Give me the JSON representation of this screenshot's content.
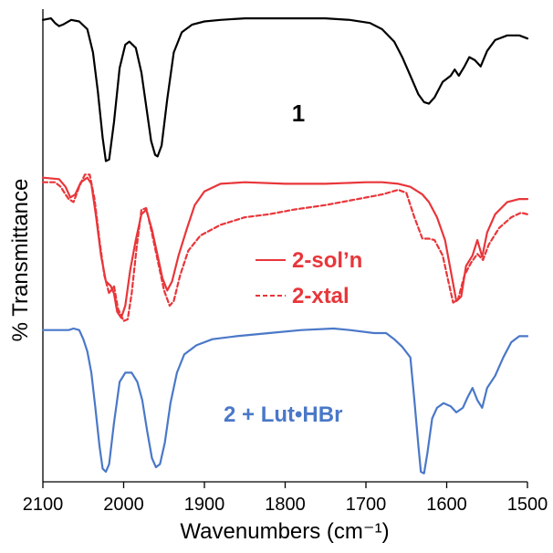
{
  "colors": {
    "black": "#000000",
    "red": "#e8363a",
    "blue": "#4a78c8"
  },
  "chart_data": {
    "type": "line",
    "xlabel": "Wavenumbers (cm⁻¹)",
    "ylabel": "% Transmittance",
    "xlim": [
      2100,
      1500
    ],
    "x_reversed": true,
    "xticks": [
      2100,
      2000,
      1900,
      1800,
      1700,
      1600,
      1500
    ],
    "xtick_labels": [
      "2100",
      "2000",
      "1900",
      "1800",
      "1700",
      "1600",
      "1500"
    ],
    "y_units": "arbitrary (stacked spectra, no y tick labels)",
    "grid": false,
    "series": [
      {
        "name": "1",
        "style": "solid",
        "color": "#000000",
        "points": [
          [
            2100,
            0.96
          ],
          [
            2090,
            0.97
          ],
          [
            2085,
            0.94
          ],
          [
            2080,
            0.92
          ],
          [
            2075,
            0.93
          ],
          [
            2065,
            0.96
          ],
          [
            2055,
            0.95
          ],
          [
            2045,
            0.9
          ],
          [
            2038,
            0.75
          ],
          [
            2032,
            0.5
          ],
          [
            2026,
            0.2
          ],
          [
            2022,
            0.05
          ],
          [
            2018,
            0.06
          ],
          [
            2012,
            0.3
          ],
          [
            2005,
            0.65
          ],
          [
            1998,
            0.8
          ],
          [
            1993,
            0.82
          ],
          [
            1985,
            0.78
          ],
          [
            1978,
            0.62
          ],
          [
            1972,
            0.4
          ],
          [
            1966,
            0.18
          ],
          [
            1961,
            0.09
          ],
          [
            1958,
            0.08
          ],
          [
            1953,
            0.15
          ],
          [
            1946,
            0.45
          ],
          [
            1938,
            0.75
          ],
          [
            1928,
            0.88
          ],
          [
            1915,
            0.93
          ],
          [
            1900,
            0.95
          ],
          [
            1880,
            0.96
          ],
          [
            1850,
            0.97
          ],
          [
            1800,
            0.97
          ],
          [
            1750,
            0.97
          ],
          [
            1720,
            0.96
          ],
          [
            1695,
            0.94
          ],
          [
            1680,
            0.9
          ],
          [
            1665,
            0.82
          ],
          [
            1655,
            0.72
          ],
          [
            1645,
            0.6
          ],
          [
            1635,
            0.48
          ],
          [
            1628,
            0.43
          ],
          [
            1622,
            0.42
          ],
          [
            1615,
            0.46
          ],
          [
            1605,
            0.56
          ],
          [
            1595,
            0.6
          ],
          [
            1590,
            0.64
          ],
          [
            1585,
            0.6
          ],
          [
            1578,
            0.66
          ],
          [
            1572,
            0.72
          ],
          [
            1565,
            0.7
          ],
          [
            1558,
            0.66
          ],
          [
            1550,
            0.76
          ],
          [
            1540,
            0.83
          ],
          [
            1525,
            0.86
          ],
          [
            1510,
            0.86
          ],
          [
            1500,
            0.84
          ]
        ]
      },
      {
        "name": "2-sol’n",
        "style": "solid",
        "color": "#e8363a",
        "points": [
          [
            2100,
            0.96
          ],
          [
            2080,
            0.95
          ],
          [
            2072,
            0.9
          ],
          [
            2066,
            0.83
          ],
          [
            2060,
            0.85
          ],
          [
            2053,
            0.93
          ],
          [
            2045,
            0.96
          ],
          [
            2040,
            0.92
          ],
          [
            2034,
            0.7
          ],
          [
            2028,
            0.45
          ],
          [
            2022,
            0.28
          ],
          [
            2016,
            0.25
          ],
          [
            2012,
            0.2
          ],
          [
            2008,
            0.08
          ],
          [
            2003,
            0.04
          ],
          [
            1998,
            0.12
          ],
          [
            1992,
            0.35
          ],
          [
            1985,
            0.55
          ],
          [
            1978,
            0.72
          ],
          [
            1972,
            0.75
          ],
          [
            1965,
            0.62
          ],
          [
            1958,
            0.45
          ],
          [
            1952,
            0.3
          ],
          [
            1946,
            0.22
          ],
          [
            1940,
            0.28
          ],
          [
            1932,
            0.45
          ],
          [
            1922,
            0.62
          ],
          [
            1912,
            0.78
          ],
          [
            1900,
            0.87
          ],
          [
            1880,
            0.92
          ],
          [
            1850,
            0.93
          ],
          [
            1800,
            0.92
          ],
          [
            1750,
            0.92
          ],
          [
            1700,
            0.93
          ],
          [
            1680,
            0.93
          ],
          [
            1660,
            0.92
          ],
          [
            1645,
            0.9
          ],
          [
            1630,
            0.85
          ],
          [
            1622,
            0.8
          ],
          [
            1612,
            0.7
          ],
          [
            1602,
            0.55
          ],
          [
            1595,
            0.35
          ],
          [
            1588,
            0.15
          ],
          [
            1582,
            0.18
          ],
          [
            1576,
            0.38
          ],
          [
            1568,
            0.45
          ],
          [
            1562,
            0.55
          ],
          [
            1556,
            0.44
          ],
          [
            1550,
            0.6
          ],
          [
            1540,
            0.72
          ],
          [
            1525,
            0.8
          ],
          [
            1510,
            0.82
          ],
          [
            1500,
            0.82
          ]
        ]
      },
      {
        "name": "2-xtal",
        "style": "dashed",
        "color": "#e8363a",
        "points": [
          [
            2100,
            0.93
          ],
          [
            2085,
            0.93
          ],
          [
            2078,
            0.9
          ],
          [
            2072,
            0.85
          ],
          [
            2068,
            0.82
          ],
          [
            2062,
            0.8
          ],
          [
            2055,
            0.9
          ],
          [
            2048,
            0.98
          ],
          [
            2042,
            0.98
          ],
          [
            2036,
            0.82
          ],
          [
            2030,
            0.55
          ],
          [
            2024,
            0.32
          ],
          [
            2018,
            0.2
          ],
          [
            2012,
            0.25
          ],
          [
            2007,
            0.1
          ],
          [
            2000,
            0.02
          ],
          [
            1995,
            0.03
          ],
          [
            1990,
            0.2
          ],
          [
            1984,
            0.5
          ],
          [
            1978,
            0.75
          ],
          [
            1972,
            0.76
          ],
          [
            1966,
            0.62
          ],
          [
            1958,
            0.42
          ],
          [
            1950,
            0.22
          ],
          [
            1943,
            0.12
          ],
          [
            1938,
            0.15
          ],
          [
            1930,
            0.32
          ],
          [
            1920,
            0.48
          ],
          [
            1905,
            0.58
          ],
          [
            1880,
            0.65
          ],
          [
            1850,
            0.7
          ],
          [
            1820,
            0.72
          ],
          [
            1790,
            0.75
          ],
          [
            1750,
            0.78
          ],
          [
            1710,
            0.82
          ],
          [
            1680,
            0.85
          ],
          [
            1660,
            0.88
          ],
          [
            1650,
            0.86
          ],
          [
            1640,
            0.7
          ],
          [
            1630,
            0.56
          ],
          [
            1622,
            0.56
          ],
          [
            1615,
            0.55
          ],
          [
            1605,
            0.45
          ],
          [
            1598,
            0.28
          ],
          [
            1592,
            0.14
          ],
          [
            1586,
            0.16
          ],
          [
            1578,
            0.32
          ],
          [
            1570,
            0.4
          ],
          [
            1562,
            0.46
          ],
          [
            1555,
            0.42
          ],
          [
            1548,
            0.52
          ],
          [
            1535,
            0.63
          ],
          [
            1520,
            0.7
          ],
          [
            1508,
            0.73
          ],
          [
            1500,
            0.72
          ]
        ]
      },
      {
        "name": "2 + Lut•HBr",
        "style": "solid",
        "color": "#4a78c8",
        "points": [
          [
            2100,
            0.96
          ],
          [
            2080,
            0.96
          ],
          [
            2068,
            0.96
          ],
          [
            2062,
            0.97
          ],
          [
            2055,
            0.96
          ],
          [
            2050,
            0.9
          ],
          [
            2045,
            0.82
          ],
          [
            2040,
            0.68
          ],
          [
            2035,
            0.45
          ],
          [
            2030,
            0.2
          ],
          [
            2026,
            0.05
          ],
          [
            2022,
            0.03
          ],
          [
            2018,
            0.08
          ],
          [
            2012,
            0.35
          ],
          [
            2005,
            0.62
          ],
          [
            1998,
            0.68
          ],
          [
            1990,
            0.68
          ],
          [
            1983,
            0.62
          ],
          [
            1977,
            0.5
          ],
          [
            1971,
            0.3
          ],
          [
            1965,
            0.12
          ],
          [
            1960,
            0.06
          ],
          [
            1955,
            0.08
          ],
          [
            1949,
            0.22
          ],
          [
            1942,
            0.48
          ],
          [
            1934,
            0.68
          ],
          [
            1925,
            0.8
          ],
          [
            1910,
            0.86
          ],
          [
            1890,
            0.9
          ],
          [
            1860,
            0.92
          ],
          [
            1820,
            0.94
          ],
          [
            1780,
            0.96
          ],
          [
            1740,
            0.97
          ],
          [
            1720,
            0.96
          ],
          [
            1690,
            0.94
          ],
          [
            1675,
            0.94
          ],
          [
            1665,
            0.9
          ],
          [
            1655,
            0.85
          ],
          [
            1645,
            0.78
          ],
          [
            1640,
            0.5
          ],
          [
            1635,
            0.2
          ],
          [
            1632,
            0.03
          ],
          [
            1628,
            0.02
          ],
          [
            1624,
            0.15
          ],
          [
            1618,
            0.38
          ],
          [
            1612,
            0.45
          ],
          [
            1604,
            0.48
          ],
          [
            1595,
            0.46
          ],
          [
            1588,
            0.42
          ],
          [
            1580,
            0.45
          ],
          [
            1574,
            0.52
          ],
          [
            1568,
            0.58
          ],
          [
            1562,
            0.5
          ],
          [
            1556,
            0.45
          ],
          [
            1550,
            0.58
          ],
          [
            1540,
            0.66
          ],
          [
            1530,
            0.78
          ],
          [
            1520,
            0.88
          ],
          [
            1510,
            0.92
          ],
          [
            1500,
            0.92
          ]
        ]
      }
    ],
    "annotations": {
      "label_1": "1",
      "legend_solid": "2-sol’n",
      "legend_dashed": "2-xtal",
      "label_blue": "2 + Lut•HBr"
    }
  }
}
